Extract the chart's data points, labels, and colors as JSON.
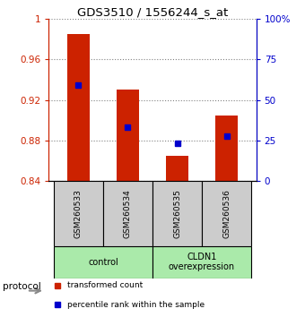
{
  "title": "GDS3510 / 1556244_s_at",
  "samples": [
    "GSM260533",
    "GSM260534",
    "GSM260535",
    "GSM260536"
  ],
  "bar_tops": [
    0.985,
    0.93,
    0.865,
    0.905
  ],
  "bar_bottom": 0.84,
  "blue_markers": [
    0.935,
    0.893,
    0.877,
    0.884
  ],
  "ylim_left": [
    0.84,
    1.0
  ],
  "ylim_right": [
    0,
    100
  ],
  "yticks_left": [
    0.84,
    0.88,
    0.92,
    0.96,
    1.0
  ],
  "yticks_right": [
    0,
    25,
    50,
    75,
    100
  ],
  "ytick_labels_left": [
    "0.84",
    "0.88",
    "0.92",
    "0.96",
    "1"
  ],
  "ytick_labels_right": [
    "0",
    "25",
    "50",
    "75",
    "100%"
  ],
  "bar_color": "#cc2200",
  "marker_color": "#0000cc",
  "group_labels": [
    "control",
    "CLDN1\noverexpression"
  ],
  "group_ranges": [
    [
      0,
      2
    ],
    [
      2,
      4
    ]
  ],
  "group_color": "#aaeaaa",
  "sample_box_color": "#cccccc",
  "protocol_label": "protocol",
  "legend_items": [
    "transformed count",
    "percentile rank within the sample"
  ],
  "legend_colors": [
    "#cc2200",
    "#0000cc"
  ],
  "bg_color": "#ffffff"
}
